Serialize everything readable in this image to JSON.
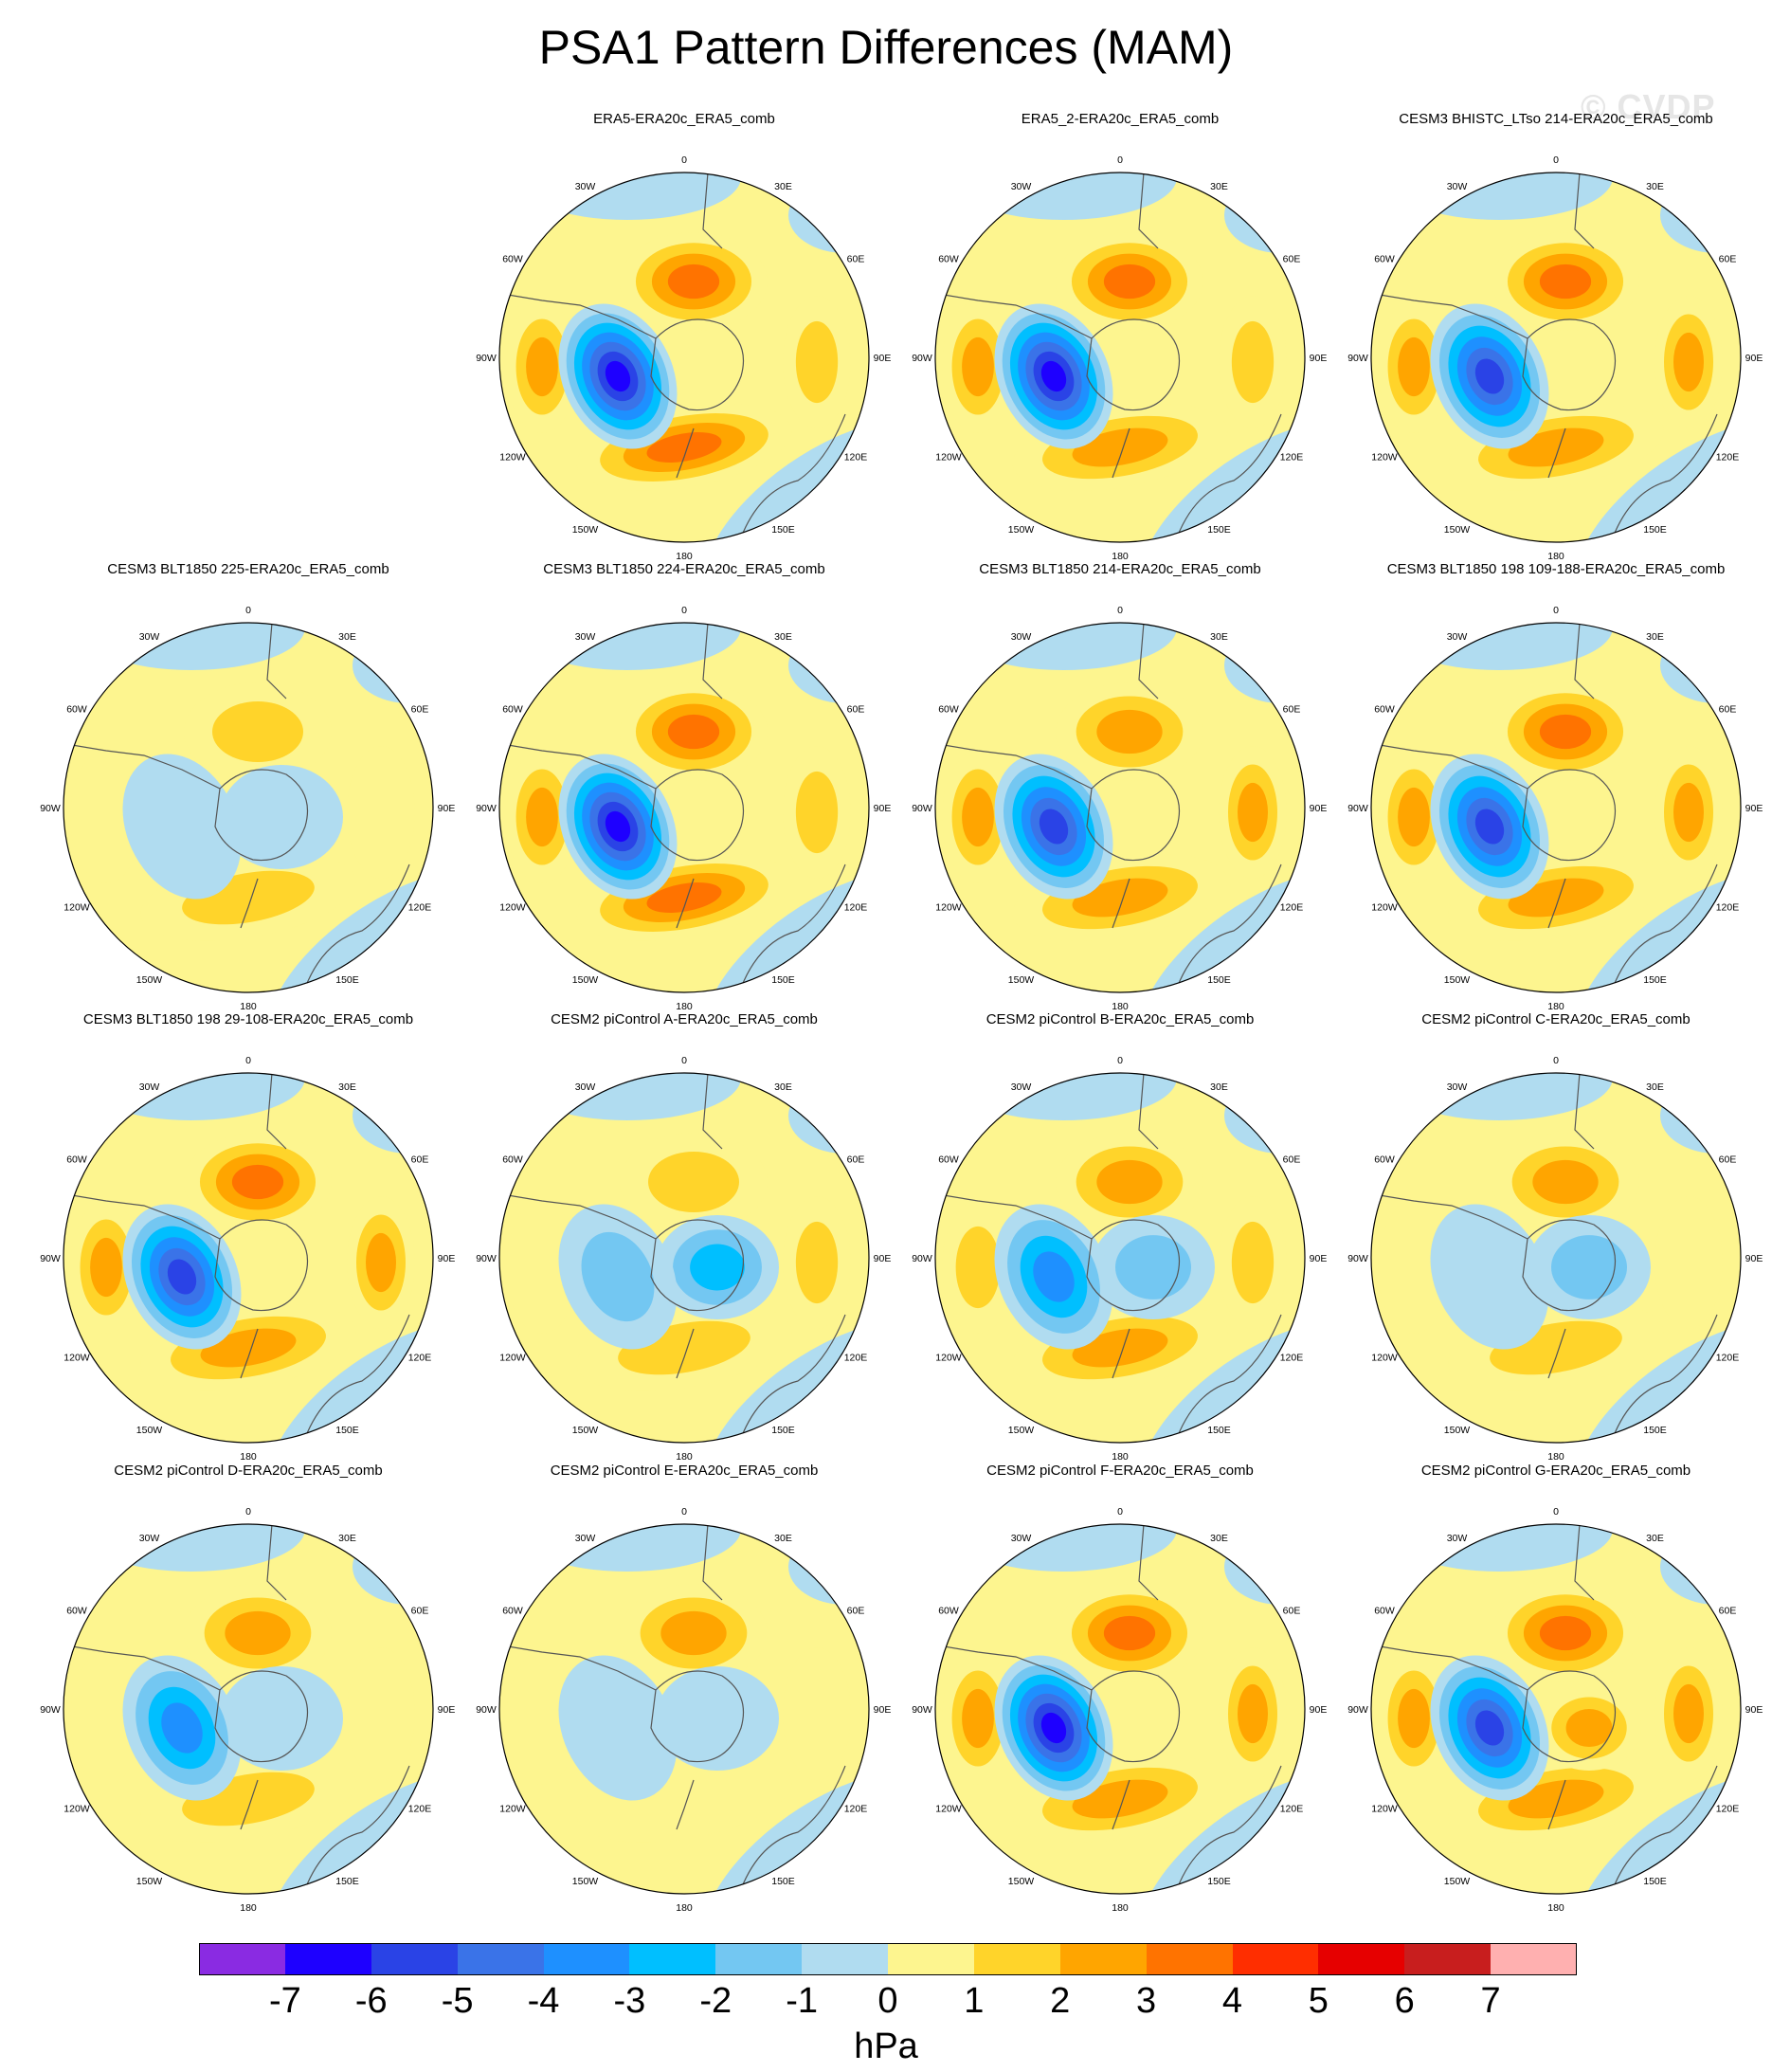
{
  "title": "PSA1 Pattern Differences (MAM)",
  "watermark": "© CVDP",
  "lon_labels": [
    "0",
    "30E",
    "60E",
    "90E",
    "120E",
    "150E",
    "180",
    "150W",
    "120W",
    "90W",
    "60W",
    "30W"
  ],
  "panels": [
    {
      "title": "ERA5-ERA20c_ERA5_comb",
      "neg": -7,
      "north": 3.8,
      "south": 3.2,
      "west": 2.5,
      "east": 1.5,
      "extra_pos": 0,
      "land_neg": 0
    },
    {
      "title": "ERA5_2-ERA20c_ERA5_comb",
      "neg": -7,
      "north": 3.4,
      "south": 2.8,
      "west": 2.4,
      "east": 1.6,
      "extra_pos": 0,
      "land_neg": 0
    },
    {
      "title": "CESM3 BHISTC_LTso 214-ERA20c_ERA5_comb",
      "neg": -6,
      "north": 3.3,
      "south": 2.6,
      "west": 2.4,
      "east": 2.5,
      "extra_pos": 0,
      "land_neg": 0
    },
    {
      "title": "CESM3 BLT1850 225-ERA20c_ERA5_comb",
      "neg": -0.8,
      "north": 1.4,
      "south": 1.6,
      "west": 0.6,
      "east": 0.5,
      "extra_pos": 0,
      "land_neg": -0.6
    },
    {
      "title": "CESM3 BLT1850 224-ERA20c_ERA5_comb",
      "neg": -7,
      "north": 3.8,
      "south": 3.2,
      "west": 2.6,
      "east": 1.6,
      "extra_pos": 0,
      "land_neg": 0
    },
    {
      "title": "CESM3 BLT1850 214-ERA20c_ERA5_comb",
      "neg": -6,
      "north": 2.8,
      "south": 2.6,
      "west": 2.4,
      "east": 2.3,
      "extra_pos": 0,
      "land_neg": 0
    },
    {
      "title": "CESM3 BLT1850 198 109-188-ERA20c_ERA5_comb",
      "neg": -6,
      "north": 3.8,
      "south": 2.5,
      "west": 2.4,
      "east": 2.2,
      "extra_pos": 0,
      "land_neg": 0
    },
    {
      "title": "CESM3 BLT1850 198 29-108-ERA20c_ERA5_comb",
      "neg": -6,
      "north": 3.4,
      "south": 3.0,
      "west": 2.4,
      "east": 2.3,
      "extra_pos": 0,
      "land_neg": 0
    },
    {
      "title": "CESM2 piControl A-ERA20c_ERA5_comb",
      "neg": -1.5,
      "north": 1.7,
      "south": 1.5,
      "west": 0.5,
      "east": 1.6,
      "extra_pos": 0,
      "land_neg": -2.4
    },
    {
      "title": "CESM2 piControl B-ERA20c_ERA5_comb",
      "neg": -3.5,
      "north": 2.3,
      "south": 2.6,
      "west": 1.6,
      "east": 1.4,
      "extra_pos": 0,
      "land_neg": -1.8
    },
    {
      "title": "CESM2 piControl C-ERA20c_ERA5_comb",
      "neg": -0.7,
      "north": 2.4,
      "south": 1.4,
      "west": 0.6,
      "east": 0.5,
      "extra_pos": 0,
      "land_neg": -1.2
    },
    {
      "title": "CESM2 piControl D-ERA20c_ERA5_comb",
      "neg": -3.2,
      "north": 2.6,
      "south": 1.6,
      "west": 0.5,
      "east": 0.5,
      "extra_pos": 0,
      "land_neg": -0.6
    },
    {
      "title": "CESM2 piControl E-ERA20c_ERA5_comb",
      "neg": -0.8,
      "north": 2.2,
      "south": 0.6,
      "west": 0.4,
      "east": 0.5,
      "extra_pos": 0,
      "land_neg": -0.8
    },
    {
      "title": "CESM2 piControl F-ERA20c_ERA5_comb",
      "neg": -7,
      "north": 3.8,
      "south": 2.6,
      "west": 2.4,
      "east": 2.3,
      "extra_pos": 0,
      "land_neg": 0
    },
    {
      "title": "CESM2 piControl G-ERA20c_ERA5_comb",
      "neg": -6,
      "north": 3.2,
      "south": 2.4,
      "west": 2.3,
      "east": 2.5,
      "extra_pos": 2.4,
      "land_neg": 0
    }
  ],
  "colorbar": {
    "colors": [
      "#8a2be2",
      "#1e00ff",
      "#2a43e6",
      "#3a73e8",
      "#1e90ff",
      "#00bfff",
      "#73c7f2",
      "#b0dcf0",
      "#fdf58f",
      "#ffd42a",
      "#ffa500",
      "#ff7300",
      "#ff2e00",
      "#e60000",
      "#c81e1e",
      "#ffb0b0"
    ],
    "ticks": [
      "-7",
      "-6",
      "-5",
      "-4",
      "-3",
      "-2",
      "-1",
      "0",
      "1",
      "2",
      "3",
      "4",
      "5",
      "6",
      "7"
    ],
    "units": "hPa"
  }
}
